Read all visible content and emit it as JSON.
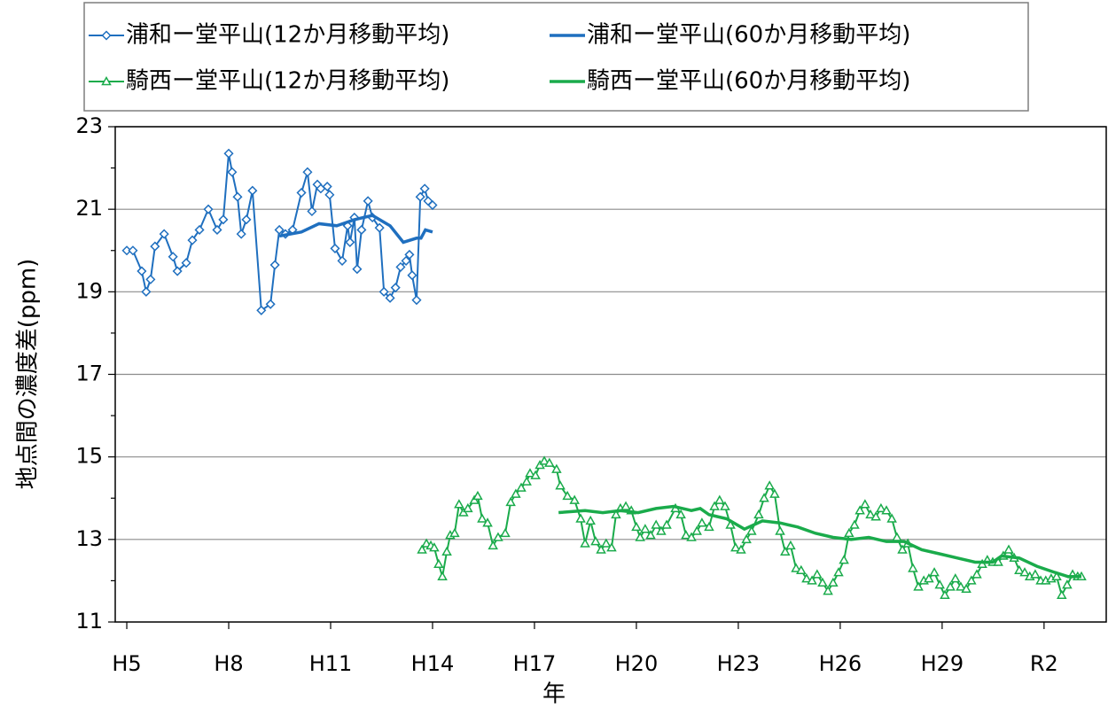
{
  "chart_data": {
    "type": "line",
    "x_label": "年",
    "y_label": "地点間の濃度差(ppm)",
    "xlim": [
      1992.66,
      2021.83
    ],
    "xticks": [
      {
        "value": 1993,
        "label": "H5"
      },
      {
        "value": 1996,
        "label": "H8"
      },
      {
        "value": 1999,
        "label": "H11"
      },
      {
        "value": 2002,
        "label": "H14"
      },
      {
        "value": 2005,
        "label": "H17"
      },
      {
        "value": 2008,
        "label": "H20"
      },
      {
        "value": 2011,
        "label": "H23"
      },
      {
        "value": 2014,
        "label": "H26"
      },
      {
        "value": 2017,
        "label": "H29"
      },
      {
        "value": 2020,
        "label": "R2"
      }
    ],
    "ylim": [
      11,
      23
    ],
    "yticks": [
      11,
      13,
      15,
      17,
      19,
      21,
      23
    ],
    "grid": true,
    "series": [
      {
        "name": "浦和ー堂平山(12か月移動平均)",
        "color": "#1f6fbf",
        "marker": "diamond",
        "x": [
          1993.0,
          1993.18,
          1993.44,
          1993.57,
          1993.7,
          1993.83,
          1994.1,
          1994.36,
          1994.49,
          1994.75,
          1994.93,
          1995.14,
          1995.4,
          1995.66,
          1995.84,
          1996.0,
          1996.1,
          1996.26,
          1996.37,
          1996.52,
          1996.7,
          1996.96,
          1997.23,
          1997.36,
          1997.49,
          1997.67,
          1997.88,
          1998.14,
          1998.32,
          1998.45,
          1998.61,
          1998.71,
          1998.9,
          1998.97,
          1999.13,
          1999.34,
          1999.5,
          1999.57,
          1999.7,
          1999.78,
          1999.91,
          2000.1,
          2000.23,
          2000.44,
          2000.57,
          2000.75,
          2000.91,
          2001.06,
          2001.22,
          2001.32,
          2001.4,
          2001.53,
          2001.64,
          2001.77,
          2001.87,
          2002.0
        ],
        "values": [
          20.0,
          20.0,
          19.5,
          19.0,
          19.3,
          20.1,
          20.4,
          19.85,
          19.5,
          19.7,
          20.25,
          20.5,
          21.0,
          20.5,
          20.75,
          22.35,
          21.9,
          21.3,
          20.4,
          20.75,
          21.45,
          18.55,
          18.7,
          19.65,
          20.5,
          20.4,
          20.5,
          21.4,
          21.9,
          20.95,
          21.6,
          21.5,
          21.55,
          21.35,
          20.05,
          19.75,
          20.6,
          20.2,
          20.8,
          19.55,
          20.5,
          21.2,
          20.8,
          20.55,
          19.0,
          18.85,
          19.1,
          19.6,
          19.75,
          19.9,
          19.4,
          18.8,
          21.3,
          21.5,
          21.2,
          21.1
        ]
      },
      {
        "name": "浦和ー堂平山(60か月移動平均)",
        "color": "#1f6fbf",
        "x": [
          1997.49,
          1998.14,
          1998.66,
          1999.18,
          1999.71,
          2000.23,
          2000.75,
          2001.14,
          2001.53,
          2001.66,
          2001.79,
          2002.0
        ],
        "values": [
          20.35,
          20.45,
          20.65,
          20.6,
          20.75,
          20.85,
          20.6,
          20.2,
          20.3,
          20.3,
          20.5,
          20.45
        ]
      },
      {
        "name": "騎西ー堂平山(12か月移動平均)",
        "color": "#1aab4b",
        "marker": "triangle",
        "x": [
          2001.69,
          2001.82,
          2001.95,
          2002.05,
          2002.18,
          2002.29,
          2002.42,
          2002.52,
          2002.65,
          2002.78,
          2002.91,
          2003.04,
          2003.23,
          2003.33,
          2003.46,
          2003.62,
          2003.78,
          2003.93,
          2004.14,
          2004.3,
          2004.45,
          2004.61,
          2004.77,
          2004.87,
          2005.03,
          2005.16,
          2005.29,
          2005.44,
          2005.65,
          2005.76,
          2005.97,
          2006.18,
          2006.36,
          2006.49,
          2006.65,
          2006.8,
          2006.96,
          2007.11,
          2007.27,
          2007.4,
          2007.53,
          2007.69,
          2007.85,
          2008.0,
          2008.11,
          2008.26,
          2008.42,
          2008.58,
          2008.73,
          2008.89,
          2009.15,
          2009.31,
          2009.46,
          2009.62,
          2009.78,
          2009.93,
          2010.14,
          2010.3,
          2010.45,
          2010.61,
          2010.77,
          2010.92,
          2011.08,
          2011.24,
          2011.39,
          2011.6,
          2011.76,
          2011.92,
          2012.07,
          2012.23,
          2012.38,
          2012.54,
          2012.7,
          2012.85,
          2013.01,
          2013.17,
          2013.32,
          2013.48,
          2013.64,
          2013.79,
          2013.95,
          2014.11,
          2014.26,
          2014.42,
          2014.58,
          2014.73,
          2014.89,
          2015.05,
          2015.2,
          2015.36,
          2015.52,
          2015.67,
          2015.83,
          2015.99,
          2016.14,
          2016.3,
          2016.46,
          2016.61,
          2016.77,
          2016.93,
          2017.08,
          2017.24,
          2017.39,
          2017.55,
          2017.71,
          2017.86,
          2018.02,
          2018.18,
          2018.33,
          2018.49,
          2018.65,
          2018.8,
          2018.96,
          2019.12,
          2019.27,
          2019.43,
          2019.58,
          2019.74,
          2019.9,
          2020.05,
          2020.21,
          2020.37,
          2020.52,
          2020.68,
          2020.84,
          2020.99,
          2021.1
        ],
        "values": [
          12.75,
          12.9,
          12.85,
          12.8,
          12.4,
          12.1,
          12.7,
          13.1,
          13.15,
          13.85,
          13.65,
          13.75,
          13.95,
          14.05,
          13.5,
          13.4,
          12.85,
          13.05,
          13.15,
          13.9,
          14.1,
          14.25,
          14.4,
          14.6,
          14.55,
          14.8,
          14.9,
          14.85,
          14.7,
          14.3,
          14.05,
          13.95,
          13.5,
          12.9,
          13.45,
          12.95,
          12.75,
          12.9,
          12.8,
          13.6,
          13.75,
          13.8,
          13.7,
          13.3,
          13.05,
          13.25,
          13.1,
          13.35,
          13.2,
          13.35,
          13.75,
          13.6,
          13.1,
          13.05,
          13.2,
          13.4,
          13.3,
          13.8,
          13.95,
          13.8,
          13.35,
          12.8,
          12.75,
          13.0,
          13.2,
          13.6,
          14.0,
          14.3,
          14.1,
          13.2,
          12.7,
          12.85,
          12.3,
          12.25,
          12.05,
          12.0,
          12.15,
          11.95,
          11.75,
          11.95,
          12.2,
          12.5,
          13.15,
          13.35,
          13.7,
          13.85,
          13.6,
          13.55,
          13.75,
          13.7,
          13.5,
          13.05,
          12.75,
          12.9,
          12.3,
          11.85,
          12.0,
          12.05,
          12.2,
          11.9,
          11.65,
          11.85,
          12.05,
          11.85,
          11.8,
          12.0,
          12.15,
          12.4,
          12.5,
          12.45,
          12.45,
          12.6,
          12.75,
          12.55,
          12.25,
          12.2,
          12.1,
          12.15,
          12.0,
          12.0,
          12.05,
          12.1,
          11.65,
          11.9,
          12.15,
          12.1,
          12.1
        ]
      },
      {
        "name": "騎西ー堂平山(60か月移動平均)",
        "color": "#1aab4b",
        "x": [
          2005.71,
          2006.49,
          2007.01,
          2007.53,
          2008.05,
          2008.58,
          2009.1,
          2009.62,
          2009.88,
          2010.14,
          2010.66,
          2011.18,
          2011.71,
          2012.23,
          2012.75,
          2013.27,
          2013.79,
          2014.32,
          2014.84,
          2015.36,
          2015.88,
          2016.4,
          2016.93,
          2017.45,
          2017.97,
          2018.49,
          2018.75,
          2019.27,
          2019.79,
          2020.32,
          2020.71,
          2021.1
        ],
        "values": [
          13.65,
          13.7,
          13.65,
          13.7,
          13.65,
          13.75,
          13.8,
          13.7,
          13.75,
          13.6,
          13.5,
          13.25,
          13.45,
          13.4,
          13.3,
          13.15,
          13.05,
          13.0,
          13.05,
          12.95,
          12.95,
          12.75,
          12.65,
          12.55,
          12.45,
          12.45,
          12.6,
          12.55,
          12.35,
          12.2,
          12.1,
          12.1
        ]
      }
    ]
  }
}
